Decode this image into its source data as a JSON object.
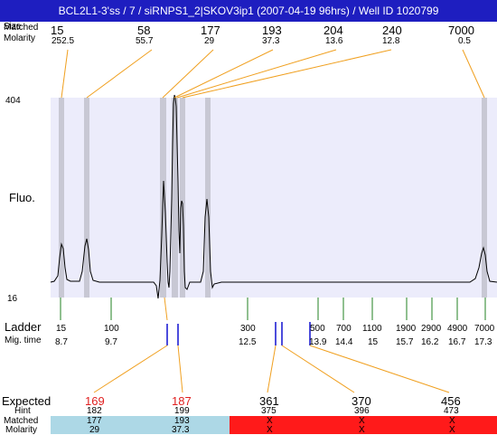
{
  "title": "BCL2L1-3'ss / 7 / siRNPS1_2|SKOV3ip1 (2007-04-19 96hrs) / Well ID 1020799",
  "header": {
    "size_label": "Size",
    "matched_label": "Matched",
    "molarity_label": "Molarity"
  },
  "top_peaks": [
    {
      "size": "15",
      "molarity": "252.5"
    },
    {
      "size": "58",
      "molarity": "55.7"
    },
    {
      "size": "177",
      "molarity": "29"
    },
    {
      "size": "193",
      "molarity": "37.3"
    },
    {
      "size": "204",
      "molarity": "13.6"
    },
    {
      "size": "240",
      "molarity": "12.8"
    },
    {
      "size": "7000",
      "molarity": "0.5"
    }
  ],
  "axis": {
    "y_max": "404",
    "y_min": "16",
    "y_label": "Fluo."
  },
  "ladder": {
    "label": "Ladder",
    "mig_label": "Mig. time",
    "items": [
      {
        "size": "15",
        "time": "8.7"
      },
      {
        "size": "100",
        "time": "9.7"
      },
      {
        "size": "300",
        "time": "12.5"
      },
      {
        "size": "500",
        "time": "13.9"
      },
      {
        "size": "700",
        "time": "14.4"
      },
      {
        "size": "1100",
        "time": "15"
      },
      {
        "size": "1900",
        "time": "15.7"
      },
      {
        "size": "2900",
        "time": "16.2"
      },
      {
        "size": "4900",
        "time": "16.7"
      },
      {
        "size": "7000",
        "time": "17.3"
      }
    ]
  },
  "expected": {
    "label": "Expected",
    "hint_label": "Hint",
    "matched_label": "Matched",
    "molarity_label": "Molarity",
    "items": [
      {
        "expected": "169",
        "hint": "182",
        "matched": "177",
        "molarity": "29",
        "status": "matched"
      },
      {
        "expected": "187",
        "hint": "199",
        "matched": "193",
        "molarity": "37.3",
        "status": "matched"
      },
      {
        "expected": "361",
        "hint": "375",
        "matched": "X",
        "molarity": "X",
        "status": "unmatched"
      },
      {
        "expected": "370",
        "hint": "396",
        "matched": "X",
        "molarity": "X",
        "status": "unmatched"
      },
      {
        "expected": "456",
        "hint": "473",
        "matched": "X",
        "molarity": "X",
        "status": "unmatched"
      }
    ]
  },
  "colors": {
    "title_bg": "#1e1ec0",
    "plot_bg": "#ececfb",
    "band": "#c8c8d4",
    "connector": "#f0a020",
    "ladder_tick": "#208020",
    "sample_tick": "#1010d0",
    "matched_bg": "#add8e6",
    "unmatched_bg": "#ff1a1a",
    "expected_red": "#e02020"
  }
}
